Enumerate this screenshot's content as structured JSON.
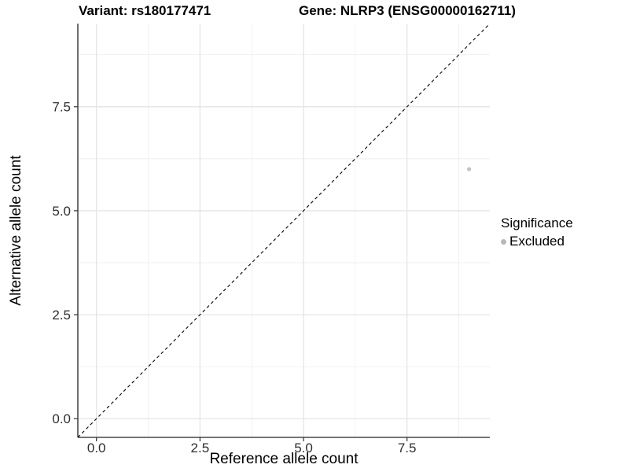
{
  "header": {
    "variant_label": "Variant: rs180177471",
    "gene_label": "Gene: NLRP3 (ENSG00000162711)"
  },
  "legend": {
    "title": "Significance",
    "items": [
      {
        "label": "Excluded",
        "color": "#b9b9b9"
      }
    ]
  },
  "theme": {
    "background": "#ffffff",
    "major_grid_color": "#e3e3e3",
    "minor_grid_color": "#eeeeee",
    "axis_line_color": "#222222",
    "tick_color": "#333333",
    "tick_label_color": "#2e2e2e",
    "identity_line_color": "#000000",
    "point_color": "#c2c2c2"
  },
  "chart_data": {
    "type": "scatter",
    "title": "Variant: rs180177471    Gene: NLRP3 (ENSG00000162711)",
    "xlabel": "Reference allele count",
    "ylabel": "Alternative allele count",
    "xlim": [
      -0.45,
      9.5
    ],
    "ylim": [
      -0.45,
      9.5
    ],
    "x_ticks": [
      0.0,
      2.5,
      5.0,
      7.5
    ],
    "y_ticks": [
      0.0,
      2.5,
      5.0,
      7.5
    ],
    "x_tick_labels": [
      "0.0",
      "2.5",
      "5.0",
      "7.5"
    ],
    "y_tick_labels": [
      "0.0",
      "2.5",
      "5.0",
      "7.5"
    ],
    "x_minor_ticks": [
      1.25,
      3.75,
      6.25,
      8.75
    ],
    "y_minor_ticks": [
      1.25,
      3.75,
      6.25,
      8.75
    ],
    "grid": true,
    "legend_position": "right",
    "identity_line": {
      "type": "abline",
      "slope": 1,
      "intercept": 0,
      "style": "dashed"
    },
    "series": [
      {
        "name": "Excluded",
        "color": "#c2c2c2",
        "points": [
          {
            "x": 9,
            "y": 6
          }
        ]
      }
    ]
  }
}
